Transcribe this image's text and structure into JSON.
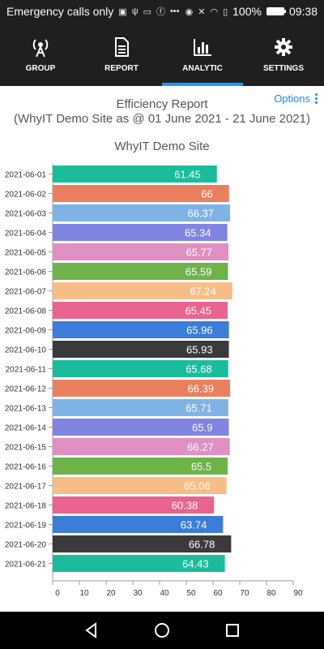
{
  "status": {
    "left_text": "Emergency calls only",
    "battery": "100%",
    "time": "09:38",
    "battery_level": 1.0
  },
  "tabs": [
    {
      "label": "GROUP",
      "icon": "antenna-icon",
      "active": false
    },
    {
      "label": "REPORT",
      "icon": "document-icon",
      "active": false
    },
    {
      "label": "ANALYTIC",
      "icon": "bar-chart-icon",
      "active": true
    },
    {
      "label": "SETTINGS",
      "icon": "gear-icon",
      "active": false
    }
  ],
  "report": {
    "options_label": "Options",
    "title": "Efficiency Report",
    "subtitle": "(WhyIT Demo Site as @ 01 June 2021 - 21 June 2021)"
  },
  "chart_data": {
    "type": "bar",
    "orientation": "horizontal",
    "title": "WhyIT Demo Site",
    "categories": [
      "2021-06-01",
      "2021-06-02",
      "2021-06-03",
      "2021-06-04",
      "2021-06-05",
      "2021-06-06",
      "2021-06-07",
      "2021-06-08",
      "2021-06-09",
      "2021-06-10",
      "2021-06-11",
      "2021-06-12",
      "2021-06-13",
      "2021-06-14",
      "2021-06-15",
      "2021-06-16",
      "2021-06-17",
      "2021-06-18",
      "2021-06-19",
      "2021-06-20",
      "2021-06-21"
    ],
    "values": [
      61.45,
      66,
      66.37,
      65.34,
      65.77,
      65.59,
      67.24,
      65.45,
      65.96,
      65.93,
      65.68,
      66.39,
      65.71,
      65.9,
      66.27,
      65.5,
      65.06,
      60.38,
      63.74,
      66.78,
      64.43
    ],
    "colors": [
      "#1abc9c",
      "#ea7f5e",
      "#7fb3e6",
      "#7f85e0",
      "#df8fc2",
      "#6fb24a",
      "#f7bd86",
      "#e8648f",
      "#3b7dd8",
      "#3a3a3a"
    ],
    "xlim": [
      0,
      90
    ],
    "xticks": [
      0,
      10,
      20,
      30,
      40,
      50,
      60,
      70,
      80,
      90
    ],
    "grid": false,
    "legend": "none"
  }
}
